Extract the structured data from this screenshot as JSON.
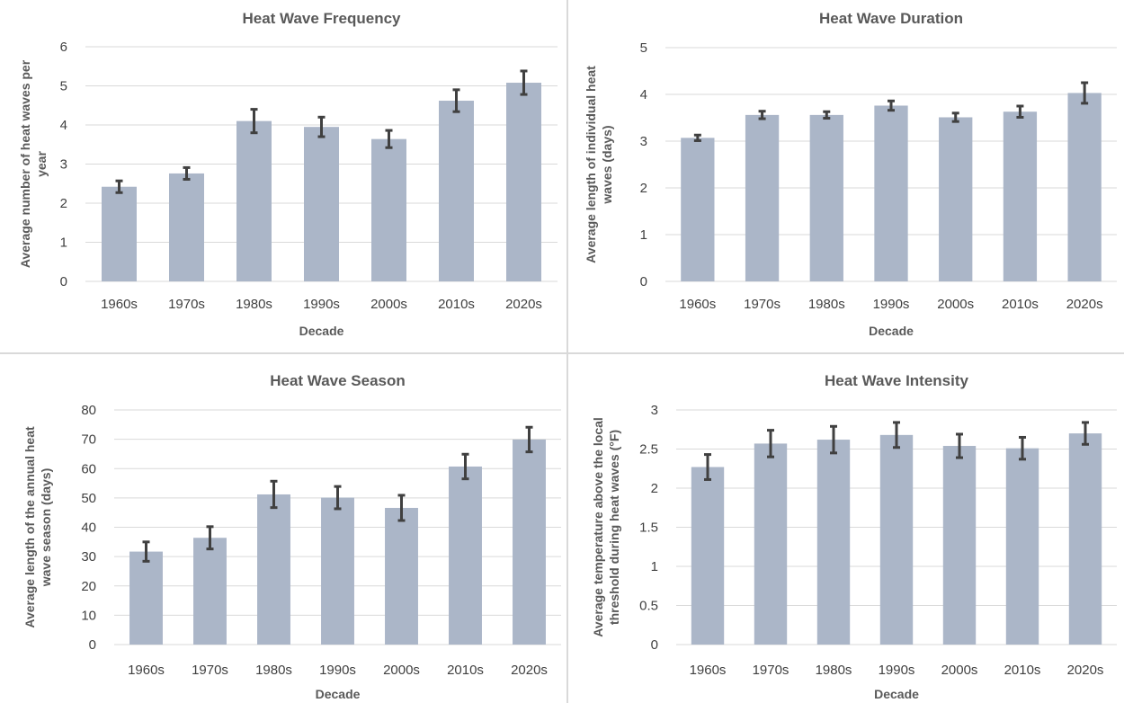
{
  "chart_data": [
    {
      "type": "bar",
      "title": "Heat Wave Frequency",
      "xlabel": "Decade",
      "ylabel": "Average number of heat waves per year",
      "categories": [
        "1960s",
        "1970s",
        "1980s",
        "1990s",
        "2000s",
        "2010s",
        "2020s"
      ],
      "values": [
        2.42,
        2.76,
        4.1,
        3.95,
        3.64,
        4.62,
        5.08
      ],
      "error": [
        0.15,
        0.15,
        0.3,
        0.25,
        0.22,
        0.28,
        0.3
      ],
      "ylim": [
        0,
        6
      ],
      "yticks": [
        "0",
        "1",
        "2",
        "3",
        "4",
        "5",
        "6"
      ],
      "grid": true,
      "error_bars": true
    },
    {
      "type": "bar",
      "title": "Heat Wave Duration",
      "xlabel": "Decade",
      "ylabel": "Average length of individual heat waves (days)",
      "categories": [
        "1960s",
        "1970s",
        "1980s",
        "1990s",
        "2000s",
        "2010s",
        "2020s"
      ],
      "values": [
        3.07,
        3.56,
        3.56,
        3.76,
        3.51,
        3.63,
        4.03
      ],
      "error": [
        0.06,
        0.08,
        0.07,
        0.1,
        0.09,
        0.12,
        0.22
      ],
      "ylim": [
        0,
        5
      ],
      "yticks": [
        "0",
        "1",
        "2",
        "3",
        "4",
        "5"
      ],
      "grid": true,
      "error_bars": true
    },
    {
      "type": "bar",
      "title": "Heat Wave Season",
      "xlabel": "Decade",
      "ylabel": "Average length of the annual heat wave season (days)",
      "categories": [
        "1960s",
        "1970s",
        "1980s",
        "1990s",
        "2000s",
        "2010s",
        "2020s"
      ],
      "values": [
        31.7,
        36.4,
        51.2,
        50.1,
        46.6,
        60.7,
        69.9
      ],
      "error": [
        3.3,
        3.8,
        4.5,
        3.8,
        4.3,
        4.2,
        4.2
      ],
      "ylim": [
        0,
        80
      ],
      "yticks": [
        "0",
        "10",
        "20",
        "30",
        "40",
        "50",
        "60",
        "70",
        "80"
      ],
      "grid": true,
      "error_bars": true
    },
    {
      "type": "bar",
      "title": "Heat Wave Intensity",
      "xlabel": "Decade",
      "ylabel": "Average temperature above the local threshold during heat waves (°F)",
      "categories": [
        "1960s",
        "1970s",
        "1980s",
        "1990s",
        "2000s",
        "2010s",
        "2020s"
      ],
      "values": [
        2.27,
        2.57,
        2.62,
        2.68,
        2.54,
        2.51,
        2.7
      ],
      "error": [
        0.16,
        0.17,
        0.17,
        0.16,
        0.15,
        0.14,
        0.14
      ],
      "ylim": [
        0,
        3
      ],
      "yticks": [
        "0",
        "0.5",
        "1",
        "1.5",
        "2",
        "2.5",
        "3"
      ],
      "grid": true,
      "error_bars": true
    }
  ]
}
